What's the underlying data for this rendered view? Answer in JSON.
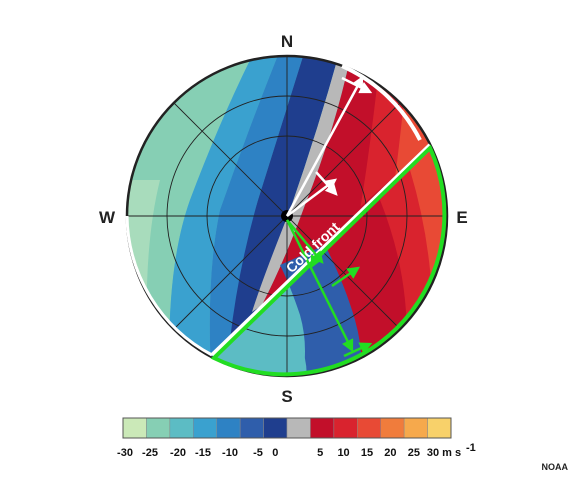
{
  "compass": {
    "north": "N",
    "south": "S",
    "east": "E",
    "west": "W"
  },
  "front_label": "Cold front",
  "colorbar": {
    "colors": [
      "#cbe9b8",
      "#86cfb4",
      "#5cbcc4",
      "#3aa1cf",
      "#2e82c4",
      "#2f5eab",
      "#1f3e8e",
      "#b8b8b8",
      "#c20f2a",
      "#d9232e",
      "#e84a35",
      "#f07c3c",
      "#f6a94c",
      "#f8d16a"
    ],
    "labels": [
      "-30",
      "-25",
      "-20",
      "-15",
      "-10",
      "-5",
      "0",
      "5",
      "10",
      "15",
      "20",
      "25",
      "30 m s"
    ],
    "unit_superscript": "-1"
  },
  "credit": "NOAA",
  "colors": {
    "outline": "#000000",
    "front_line": "#ffffff",
    "post_front_outline": "#ffffff",
    "pre_front_outline": "#22dd22",
    "white_arrows": "#ffffff",
    "green_arrows": "#22dd22"
  }
}
